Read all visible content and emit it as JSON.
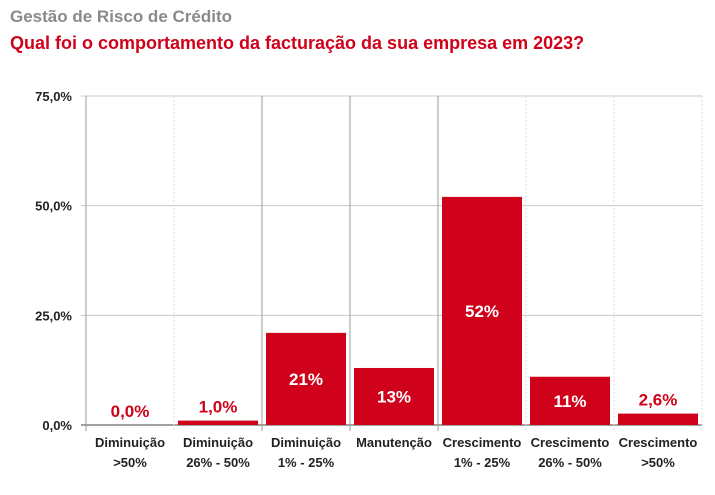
{
  "header": {
    "supertitle": "Gestão de Risco de Crédito",
    "title": "Qual foi o comportamento da facturação da sua empresa em 2023?"
  },
  "colors": {
    "bar": "#d0021b",
    "label_outside": "#d0021b",
    "label_inside": "#ffffff",
    "grid": "#c8c8c8"
  },
  "chart_data": {
    "type": "bar",
    "title": "Qual foi o comportamento da facturação da sua empresa em 2023?",
    "categories": [
      [
        "Diminuição",
        ">50%"
      ],
      [
        "Diminuição",
        "26% - 50%"
      ],
      [
        "Diminuição",
        "1% - 25%"
      ],
      [
        "Manutenção"
      ],
      [
        "Crescimento",
        "1% - 25%"
      ],
      [
        "Crescimento",
        "26% - 50%"
      ],
      [
        "Crescimento",
        ">50%"
      ]
    ],
    "values": [
      0.0,
      1.0,
      21,
      13,
      52,
      11,
      2.6
    ],
    "data_labels": [
      "0,0%",
      "1,0%",
      "21%",
      "13%",
      "52%",
      "11%",
      "2,6%"
    ],
    "ylim": [
      0,
      75
    ],
    "yticks": [
      0,
      25,
      50,
      75
    ],
    "ytick_labels": [
      "0,0%",
      "25,0%",
      "50,0%",
      "75,0%"
    ],
    "xlabel": "",
    "ylabel": "",
    "grid": true
  }
}
